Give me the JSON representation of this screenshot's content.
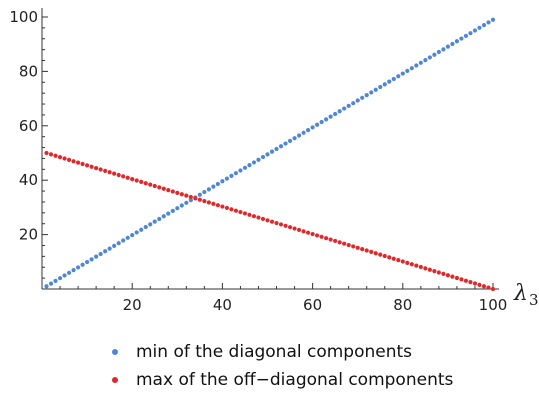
{
  "chart_data": {
    "type": "scatter",
    "x_axis": {
      "label_main": "λ",
      "label_sub": "3",
      "ticks": [
        20,
        40,
        60,
        80,
        100
      ],
      "range": [
        0,
        100
      ]
    },
    "y_axis": {
      "ticks": [
        20,
        40,
        60,
        80,
        100
      ],
      "range": [
        0,
        100
      ]
    },
    "series": [
      {
        "name": "min of the diagonal components",
        "color": "#4f86d6",
        "x_start": 1,
        "x_end": 100,
        "y_at_start": 1,
        "y_at_end": 99
      },
      {
        "name": "max of the off−diagonal components",
        "color": "#e0282a",
        "x_start": 1,
        "x_end": 100,
        "y_at_start": 50,
        "y_at_end": 0
      }
    ],
    "legend_position": "bottom",
    "grid": false
  }
}
